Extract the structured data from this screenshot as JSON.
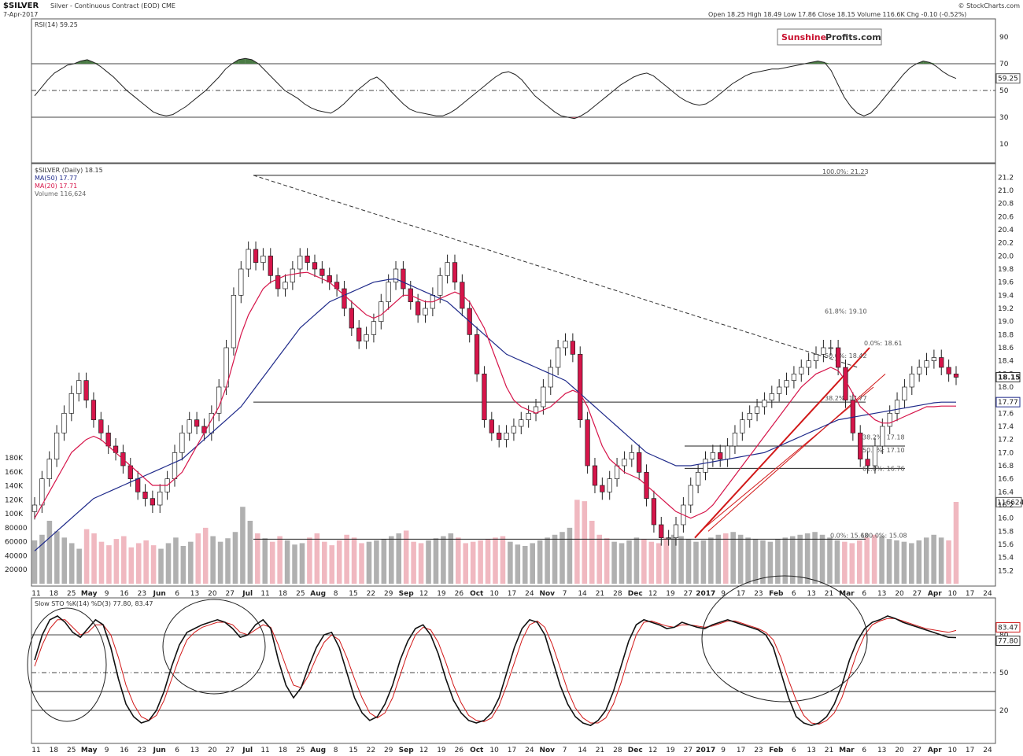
{
  "header": {
    "symbol": "$SILVER",
    "description": "Silver - Continuous Contract (EOD) CME",
    "date": "7-Apr-2017",
    "quote": "Open 18.25 High 18.49 Low 17.86 Close 18.15 Volume 116.6K Chg -0.10 (-0.52%)",
    "source": "© StockCharts.com",
    "watermark_part1": "Sunshine",
    "watermark_part2": "Profits.com"
  },
  "colors": {
    "up_candle": "#ffffff",
    "down_candle": "#d6154a",
    "ma50": "#1f2a8a",
    "ma20": "#d6154a",
    "rsi_fill_overbought": "#4a7a44",
    "rsi_fill_oversold": "#c06070",
    "volume_up": "#b0b0b0",
    "volume_down": "#f0b8c0",
    "trend_red": "#d11818"
  },
  "chart_data": [
    {
      "type": "line",
      "title": "RSI(14) 59.25",
      "series": [
        {
          "name": "RSI(14)",
          "values": [
            46,
            52,
            58,
            63,
            66,
            69,
            70,
            72,
            73,
            71,
            68,
            64,
            60,
            55,
            50,
            46,
            42,
            38,
            34,
            32,
            31,
            32,
            35,
            38,
            42,
            46,
            50,
            55,
            60,
            66,
            70,
            73,
            74,
            73,
            70,
            65,
            60,
            55,
            50,
            47,
            44,
            40,
            37,
            35,
            34,
            33,
            36,
            40,
            45,
            50,
            54,
            58,
            60,
            56,
            50,
            45,
            40,
            36,
            34,
            33,
            32,
            31,
            31,
            33,
            36,
            40,
            44,
            48,
            52,
            56,
            60,
            63,
            64,
            62,
            58,
            52,
            46,
            42,
            38,
            34,
            31,
            30,
            29,
            31,
            34,
            38,
            42,
            46,
            50,
            54,
            57,
            60,
            62,
            63,
            61,
            57,
            53,
            49,
            45,
            42,
            40,
            39,
            40,
            43,
            47,
            51,
            55,
            58,
            61,
            63,
            64,
            65,
            66,
            66,
            67,
            68,
            69,
            70,
            71,
            72,
            71,
            65,
            55,
            45,
            38,
            33,
            31,
            33,
            38,
            44,
            50,
            56,
            62,
            67,
            70,
            72,
            71,
            68,
            64,
            61,
            59
          ]
        }
      ],
      "ylim": [
        0,
        100
      ],
      "levels": [
        30,
        50,
        70
      ],
      "tick_labels": [
        "90",
        "70",
        "50",
        "30",
        "10"
      ],
      "last_value_label": "59.25"
    },
    {
      "type": "candlestick",
      "title": "$SILVER (Daily) 18.15",
      "legend": [
        "MA(50) 17.77",
        "MA(20) 17.71",
        "Volume 116,624"
      ],
      "ylim": [
        15.0,
        21.3
      ],
      "y_ticks": [
        "21.2",
        "21.0",
        "20.8",
        "20.6",
        "20.4",
        "20.2",
        "20.0",
        "19.8",
        "19.6",
        "19.4",
        "19.2",
        "19.0",
        "18.8",
        "18.6",
        "18.4",
        "18.2",
        "18.0",
        "17.8",
        "17.6",
        "17.4",
        "17.2",
        "17.0",
        "16.8",
        "16.6",
        "16.4",
        "16.2",
        "16.0",
        "15.8",
        "15.6",
        "15.4",
        "15.2"
      ],
      "last_price_label": "18.15",
      "ma50_label": "17.77",
      "series": [
        {
          "name": "Close",
          "values": [
            16.2,
            16.6,
            16.9,
            17.3,
            17.6,
            17.9,
            18.1,
            17.8,
            17.5,
            17.3,
            17.1,
            17.0,
            16.8,
            16.6,
            16.4,
            16.3,
            16.2,
            16.4,
            16.6,
            17.0,
            17.3,
            17.5,
            17.4,
            17.3,
            17.6,
            18.0,
            18.6,
            19.4,
            19.8,
            20.1,
            19.9,
            20.0,
            19.7,
            19.5,
            19.6,
            19.8,
            20.0,
            19.9,
            19.8,
            19.7,
            19.6,
            19.5,
            19.2,
            18.9,
            18.7,
            18.8,
            19.0,
            19.3,
            19.6,
            19.8,
            19.5,
            19.3,
            19.1,
            19.2,
            19.4,
            19.7,
            19.9,
            19.6,
            19.2,
            18.8,
            18.2,
            17.5,
            17.3,
            17.2,
            17.3,
            17.4,
            17.5,
            17.6,
            17.7,
            18.0,
            18.3,
            18.6,
            18.7,
            18.5,
            17.5,
            16.8,
            16.5,
            16.4,
            16.6,
            16.8,
            16.9,
            17.0,
            16.7,
            16.3,
            15.9,
            15.7,
            15.7,
            15.9,
            16.2,
            16.5,
            16.7,
            16.9,
            17.0,
            16.9,
            17.1,
            17.3,
            17.5,
            17.6,
            17.7,
            17.8,
            17.9,
            18.0,
            18.1,
            18.2,
            18.3,
            18.4,
            18.5,
            18.6,
            18.6,
            18.3,
            17.8,
            17.3,
            16.9,
            16.8,
            17.1,
            17.4,
            17.6,
            17.8,
            18.0,
            18.2,
            18.3,
            18.4,
            18.45,
            18.3,
            18.2,
            18.15
          ]
        },
        {
          "name": "MA(50)",
          "values": [
            15.5,
            15.6,
            15.7,
            15.8,
            15.9,
            16.0,
            16.1,
            16.2,
            16.3,
            16.35,
            16.4,
            16.45,
            16.5,
            16.55,
            16.6,
            16.65,
            16.7,
            16.75,
            16.8,
            16.85,
            16.9,
            17.0,
            17.1,
            17.2,
            17.3,
            17.4,
            17.5,
            17.6,
            17.7,
            17.85,
            18.0,
            18.15,
            18.3,
            18.45,
            18.6,
            18.75,
            18.9,
            19.0,
            19.1,
            19.2,
            19.3,
            19.35,
            19.4,
            19.45,
            19.5,
            19.55,
            19.6,
            19.62,
            19.64,
            19.65,
            19.6,
            19.55,
            19.5,
            19.45,
            19.4,
            19.35,
            19.3,
            19.2,
            19.1,
            19.0,
            18.9,
            18.8,
            18.7,
            18.6,
            18.5,
            18.45,
            18.4,
            18.35,
            18.3,
            18.25,
            18.2,
            18.15,
            18.1,
            18.0,
            17.9,
            17.8,
            17.7,
            17.6,
            17.5,
            17.4,
            17.3,
            17.2,
            17.1,
            17.0,
            16.95,
            16.9,
            16.85,
            16.8,
            16.8,
            16.8,
            16.82,
            16.84,
            16.86,
            16.88,
            16.9,
            16.92,
            16.94,
            16.96,
            16.98,
            17.0,
            17.05,
            17.1,
            17.15,
            17.2,
            17.25,
            17.3,
            17.35,
            17.4,
            17.45,
            17.5,
            17.52,
            17.54,
            17.56,
            17.58,
            17.6,
            17.62,
            17.64,
            17.66,
            17.68,
            17.7,
            17.72,
            17.74,
            17.76,
            17.77,
            17.77,
            17.77
          ]
        },
        {
          "name": "MA(20)",
          "values": [
            16.0,
            16.2,
            16.4,
            16.6,
            16.8,
            17.0,
            17.1,
            17.2,
            17.25,
            17.2,
            17.1,
            17.0,
            16.9,
            16.8,
            16.7,
            16.6,
            16.5,
            16.5,
            16.5,
            16.6,
            16.7,
            16.9,
            17.1,
            17.3,
            17.5,
            17.7,
            18.0,
            18.4,
            18.8,
            19.1,
            19.3,
            19.5,
            19.6,
            19.65,
            19.7,
            19.72,
            19.74,
            19.75,
            19.7,
            19.65,
            19.6,
            19.5,
            19.4,
            19.3,
            19.2,
            19.1,
            19.05,
            19.1,
            19.2,
            19.3,
            19.4,
            19.4,
            19.35,
            19.3,
            19.3,
            19.35,
            19.4,
            19.45,
            19.4,
            19.3,
            19.1,
            18.9,
            18.6,
            18.3,
            18.0,
            17.8,
            17.7,
            17.65,
            17.6,
            17.65,
            17.7,
            17.8,
            17.9,
            17.95,
            17.9,
            17.7,
            17.4,
            17.1,
            16.9,
            16.8,
            16.7,
            16.65,
            16.6,
            16.5,
            16.4,
            16.3,
            16.2,
            16.1,
            16.05,
            16.0,
            16.05,
            16.1,
            16.2,
            16.35,
            16.5,
            16.65,
            16.8,
            16.95,
            17.1,
            17.25,
            17.4,
            17.55,
            17.7,
            17.85,
            18.0,
            18.1,
            18.2,
            18.25,
            18.3,
            18.25,
            18.1,
            17.9,
            17.7,
            17.6,
            17.5,
            17.45,
            17.45,
            17.5,
            17.55,
            17.6,
            17.65,
            17.7,
            17.7,
            17.71,
            17.71,
            17.71
          ]
        }
      ],
      "fibonacci": [
        {
          "label": "100.0%: 21.23",
          "price": 21.23
        },
        {
          "label": "61.8%: 19.10",
          "price": 19.1
        },
        {
          "label": "50.0%: 18.42",
          "price": 18.42
        },
        {
          "label": "0.0%: 18.61",
          "price": 18.61
        },
        {
          "label": "38.2%: 17.77",
          "price": 17.77
        },
        {
          "label": "38.2%: 17.18",
          "price": 17.18
        },
        {
          "label": "50.0%: 17.10",
          "price": 17.1
        },
        {
          "label": "61.8%: 16.76",
          "price": 16.76
        },
        {
          "label": "0.0%: 15.68",
          "price": 15.68
        },
        {
          "label": "100.0%: 15.08",
          "price": 15.08
        }
      ]
    },
    {
      "type": "bar",
      "title": "Volume",
      "volume_ticks": [
        "180K",
        "160K",
        "140K",
        "120K",
        "100K",
        "80000",
        "60000",
        "40000",
        "20000"
      ],
      "current_label": "116624",
      "series": [
        {
          "name": "Volume",
          "values": [
            62,
            70,
            90,
            75,
            66,
            58,
            50,
            78,
            72,
            60,
            55,
            64,
            68,
            52,
            58,
            62,
            55,
            50,
            58,
            66,
            54,
            60,
            72,
            80,
            68,
            60,
            65,
            74,
            110,
            90,
            72,
            65,
            60,
            68,
            62,
            56,
            58,
            66,
            72,
            60,
            55,
            62,
            70,
            66,
            58,
            60,
            62,
            64,
            68,
            72,
            76,
            60,
            58,
            62,
            65,
            68,
            72,
            66,
            58,
            60,
            62,
            64,
            66,
            68,
            60,
            56,
            54,
            58,
            62,
            66,
            70,
            74,
            80,
            120,
            118,
            90,
            70,
            65,
            60,
            58,
            62,
            66,
            64,
            60,
            58,
            66,
            70,
            68,
            64,
            60,
            62,
            66,
            70,
            72,
            74,
            70,
            66,
            64,
            62,
            60,
            64,
            66,
            68,
            70,
            72,
            74,
            70,
            66,
            62,
            60,
            58,
            62,
            66,
            70,
            68,
            64,
            62,
            60,
            58,
            62,
            66,
            70,
            66,
            62,
            117
          ]
        }
      ]
    },
    {
      "type": "line",
      "title": "Slow STO %K(14) %D(3) 77.80, 83.47",
      "series": [
        {
          "name": "%K",
          "values": [
            60,
            80,
            92,
            95,
            90,
            82,
            78,
            85,
            92,
            88,
            70,
            45,
            25,
            15,
            10,
            12,
            20,
            35,
            55,
            72,
            82,
            85,
            88,
            90,
            92,
            90,
            85,
            78,
            80,
            88,
            92,
            85,
            60,
            40,
            30,
            38,
            55,
            70,
            80,
            82,
            70,
            50,
            30,
            18,
            12,
            15,
            25,
            40,
            60,
            75,
            85,
            88,
            80,
            65,
            45,
            28,
            18,
            12,
            10,
            12,
            18,
            30,
            50,
            70,
            85,
            92,
            90,
            80,
            60,
            40,
            25,
            15,
            10,
            8,
            12,
            20,
            35,
            55,
            75,
            88,
            92,
            90,
            88,
            85,
            86,
            90,
            88,
            86,
            85,
            88,
            90,
            92,
            90,
            88,
            86,
            84,
            80,
            70,
            50,
            30,
            15,
            10,
            8,
            10,
            15,
            25,
            40,
            60,
            75,
            85,
            90,
            92,
            95,
            93,
            90,
            88,
            86,
            84,
            82,
            80,
            78,
            77.8
          ]
        },
        {
          "name": "%D",
          "values": [
            55,
            72,
            85,
            92,
            92,
            86,
            80,
            82,
            88,
            88,
            80,
            62,
            40,
            25,
            15,
            12,
            16,
            28,
            45,
            62,
            76,
            82,
            86,
            88,
            90,
            90,
            88,
            82,
            80,
            84,
            88,
            86,
            72,
            55,
            40,
            38,
            48,
            62,
            74,
            80,
            76,
            62,
            45,
            30,
            18,
            14,
            18,
            30,
            48,
            66,
            80,
            86,
            84,
            74,
            58,
            40,
            26,
            16,
            12,
            11,
            14,
            24,
            40,
            58,
            76,
            88,
            91,
            86,
            72,
            54,
            36,
            22,
            14,
            10,
            10,
            14,
            25,
            42,
            62,
            80,
            90,
            91,
            89,
            87,
            86,
            88,
            88,
            87,
            86,
            87,
            89,
            91,
            91,
            89,
            87,
            85,
            82,
            76,
            62,
            44,
            28,
            16,
            10,
            9,
            12,
            18,
            30,
            48,
            66,
            80,
            88,
            91,
            93,
            93,
            91,
            89,
            87,
            85,
            84,
            83,
            82,
            83.47
          ]
        }
      ],
      "ylim": [
        0,
        100
      ],
      "levels": [
        20,
        50,
        80
      ],
      "tick_labels": [
        "80",
        "50",
        "20"
      ],
      "last_values": [
        "83.47",
        "77.80"
      ]
    }
  ],
  "x_axis_labels": [
    "11",
    "18",
    "25",
    "May",
    "9",
    "16",
    "23",
    "Jun",
    "6",
    "13",
    "20",
    "27",
    "Jul",
    "11",
    "18",
    "25",
    "Aug",
    "8",
    "15",
    "22",
    "29",
    "Sep",
    "12",
    "19",
    "26",
    "Oct",
    "10",
    "17",
    "24",
    "Nov",
    "7",
    "14",
    "21",
    "28",
    "Dec",
    "12",
    "19",
    "27",
    "2017",
    "9",
    "17",
    "23",
    "Feb",
    "6",
    "13",
    "21",
    "Mar",
    "6",
    "13",
    "20",
    "27",
    "Apr",
    "10",
    "17",
    "24"
  ]
}
